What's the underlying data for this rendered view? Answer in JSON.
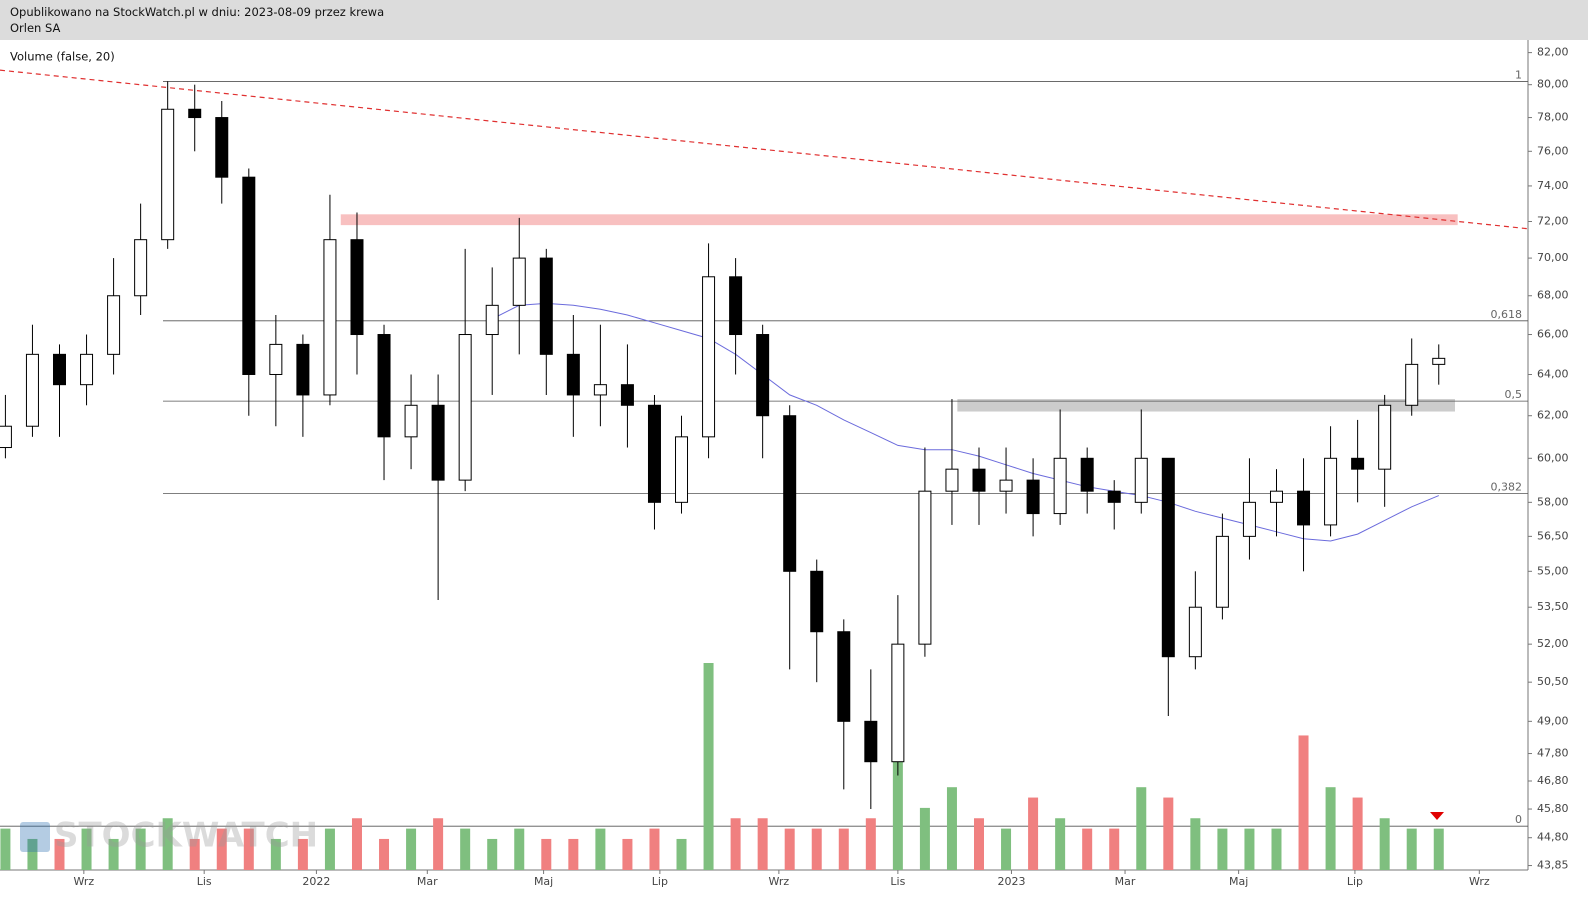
{
  "header": {
    "published": "Opublikowano na StockWatch.pl w dniu: 2023-08-09 przez krewa",
    "instrument": "Orlen SA"
  },
  "watermark": "STOCKWATCH",
  "chart_data": {
    "type": "candlestick",
    "indicator_label": "Volume (false, 20)",
    "log_scale": true,
    "xlim": [
      -0.2,
      56.3
    ],
    "xticks": [
      {
        "value": 2.9,
        "label": "Wrz"
      },
      {
        "value": 7.35,
        "label": "Lis"
      },
      {
        "value": 11.5,
        "label": "2022"
      },
      {
        "value": 15.6,
        "label": "Mar"
      },
      {
        "value": 19.9,
        "label": "Maj"
      },
      {
        "value": 24.2,
        "label": "Lip"
      },
      {
        "value": 28.6,
        "label": "Wrz"
      },
      {
        "value": 33.0,
        "label": "Lis"
      },
      {
        "value": 37.2,
        "label": "2023"
      },
      {
        "value": 41.4,
        "label": "Mar"
      },
      {
        "value": 45.6,
        "label": "Maj"
      },
      {
        "value": 49.9,
        "label": "Lip"
      },
      {
        "value": 54.5,
        "label": "Wrz"
      }
    ],
    "ylim": [
      43.7,
      82.8
    ],
    "yticks": [
      {
        "value": 82,
        "label": "82,00"
      },
      {
        "value": 80,
        "label": "80,00"
      },
      {
        "value": 78,
        "label": "78,00"
      },
      {
        "value": 76,
        "label": "76,00"
      },
      {
        "value": 74,
        "label": "74,00"
      },
      {
        "value": 72,
        "label": "72,00"
      },
      {
        "value": 70,
        "label": "70,00"
      },
      {
        "value": 68,
        "label": "68,00"
      },
      {
        "value": 66,
        "label": "66,00"
      },
      {
        "value": 64,
        "label": "64,00"
      },
      {
        "value": 62,
        "label": "62,00"
      },
      {
        "value": 60,
        "label": "60,00"
      },
      {
        "value": 58,
        "label": "58,00"
      },
      {
        "value": 56.5,
        "label": "56,50"
      },
      {
        "value": 55,
        "label": "55,00"
      },
      {
        "value": 53.5,
        "label": "53,50"
      },
      {
        "value": 52,
        "label": "52,00"
      },
      {
        "value": 50.5,
        "label": "50,50"
      },
      {
        "value": 49,
        "label": "49,00"
      },
      {
        "value": 47.8,
        "label": "47,80"
      },
      {
        "value": 46.8,
        "label": "46,80"
      },
      {
        "value": 45.8,
        "label": "45,80"
      },
      {
        "value": 44.8,
        "label": "44,80"
      },
      {
        "value": 43.85,
        "label": "43,85"
      }
    ],
    "up_color": "#ffffff",
    "down_color": "#000000",
    "wick_color": "#000000",
    "ohlc": [
      [
        60.5,
        63,
        60,
        61.5
      ],
      [
        61.5,
        66.5,
        61,
        65
      ],
      [
        65,
        65.5,
        61,
        63.5
      ],
      [
        63.5,
        66,
        62.5,
        65
      ],
      [
        65,
        70,
        64,
        68
      ],
      [
        68,
        73,
        67,
        71
      ],
      [
        71,
        80.2,
        70.5,
        78.5
      ],
      [
        78.5,
        80,
        76,
        78
      ],
      [
        78,
        79,
        73,
        74.5
      ],
      [
        74.5,
        75,
        62,
        64
      ],
      [
        64,
        67,
        61.5,
        65.5
      ],
      [
        65.5,
        66,
        61,
        63
      ],
      [
        63,
        73.5,
        62.5,
        71
      ],
      [
        71,
        72.5,
        64,
        66
      ],
      [
        66,
        66.5,
        59,
        61
      ],
      [
        61,
        64,
        59.5,
        62.5
      ],
      [
        62.5,
        64,
        53.8,
        59
      ],
      [
        59,
        70.5,
        58.5,
        66
      ],
      [
        66,
        69.5,
        63,
        67.5
      ],
      [
        67.5,
        72.2,
        65,
        70
      ],
      [
        70,
        70.5,
        63,
        65
      ],
      [
        65,
        67,
        61,
        63
      ],
      [
        63,
        66.5,
        61.5,
        63.5
      ],
      [
        63.5,
        65.5,
        60.5,
        62.5
      ],
      [
        62.5,
        63,
        56.8,
        58
      ],
      [
        58,
        62,
        57.5,
        61
      ],
      [
        61,
        70.8,
        60,
        69
      ],
      [
        69,
        70,
        64,
        66
      ],
      [
        66,
        66.5,
        60,
        62
      ],
      [
        62,
        62.5,
        51,
        55
      ],
      [
        55,
        55.5,
        50.5,
        52.5
      ],
      [
        52.5,
        53,
        46.5,
        49
      ],
      [
        49,
        51,
        45.8,
        47.5
      ],
      [
        47.5,
        54,
        47,
        52
      ],
      [
        52,
        60.5,
        51.5,
        58.5
      ],
      [
        58.5,
        62.8,
        57,
        59.5
      ],
      [
        59.5,
        60.5,
        57,
        58.5
      ],
      [
        58.5,
        60.5,
        57.5,
        59
      ],
      [
        59,
        60,
        56.5,
        57.5
      ],
      [
        57.5,
        62.3,
        57,
        60
      ],
      [
        60,
        60.5,
        57.5,
        58.5
      ],
      [
        58.5,
        59,
        56.8,
        58
      ],
      [
        58,
        62.3,
        57.5,
        60
      ],
      [
        60,
        60,
        49.2,
        51.5
      ],
      [
        51.5,
        55,
        51,
        53.5
      ],
      [
        53.5,
        57.5,
        53,
        56.5
      ],
      [
        56.5,
        60,
        55.5,
        58
      ],
      [
        58,
        59.5,
        56.5,
        58.5
      ],
      [
        58.5,
        60,
        55,
        57
      ],
      [
        57,
        61.5,
        56.5,
        60
      ],
      [
        60,
        61.8,
        58,
        59.5
      ],
      [
        59.5,
        63,
        57.8,
        62.5
      ],
      [
        62.5,
        65.8,
        62,
        64.5
      ],
      [
        64.5,
        65.5,
        63.5,
        64.8
      ]
    ],
    "volume": [
      4,
      3,
      3,
      4,
      3,
      4,
      5,
      3,
      4,
      4,
      3,
      3,
      4,
      5,
      3,
      4,
      5,
      4,
      3,
      4,
      3,
      3,
      4,
      3,
      4,
      3,
      20,
      5,
      5,
      4,
      4,
      4,
      5,
      14,
      6,
      8,
      5,
      4,
      7,
      5,
      4,
      4,
      8,
      7,
      5,
      4,
      4,
      4,
      13,
      8,
      7,
      5,
      4,
      4
    ],
    "volume_up_color": "#7fbf7f",
    "volume_down_color": "#f08080",
    "ma": {
      "color": "#6b6bdc",
      "values": [
        null,
        null,
        null,
        null,
        null,
        null,
        null,
        null,
        null,
        null,
        null,
        null,
        null,
        null,
        null,
        null,
        null,
        null,
        66.8,
        67.5,
        67.6,
        67.5,
        67.3,
        67,
        66.6,
        66.2,
        65.8,
        65,
        64,
        63,
        62.5,
        61.8,
        61.2,
        60.6,
        60.4,
        60.4,
        60.1,
        59.7,
        59.3,
        59,
        58.7,
        58.5,
        58.3,
        58,
        57.6,
        57.3,
        57,
        56.7,
        56.4,
        56.3,
        56.6,
        57.2,
        57.8,
        58.3
      ]
    },
    "levels": [
      {
        "label": "1",
        "value": 80.2
      },
      {
        "label": "0,618",
        "value": 66.7
      },
      {
        "label": "0,5",
        "value": 62.7
      },
      {
        "label": "0,382",
        "value": 58.4
      },
      {
        "label": "0",
        "value": 45.2
      }
    ],
    "zones": [
      {
        "x": [
          12.4,
          53.7
        ],
        "y": [
          71.8,
          72.4
        ],
        "color": "#f8c0c0"
      },
      {
        "x": [
          35.2,
          53.6
        ],
        "y": [
          62.2,
          62.8
        ],
        "color": "#cccccc"
      }
    ],
    "trendline": {
      "x": [
        -0.2,
        56.3
      ],
      "y": [
        80.9,
        71.6
      ],
      "color": "#e03030"
    }
  }
}
